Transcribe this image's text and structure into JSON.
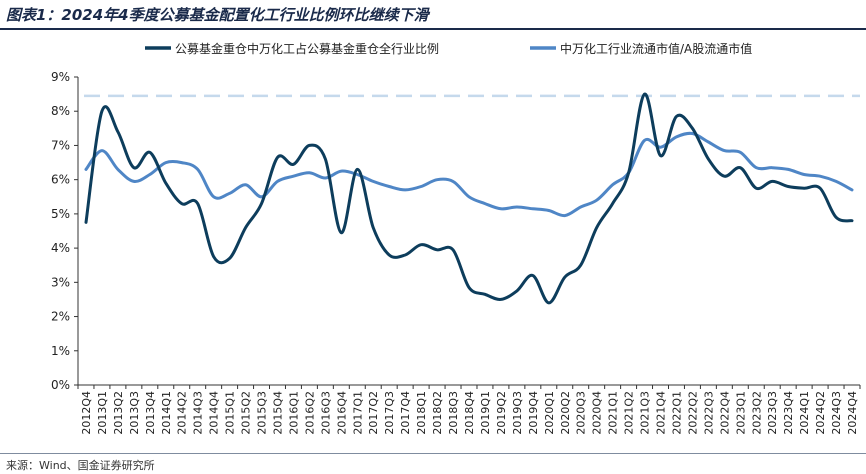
{
  "figure_title": "图表1：2024年4季度公募基金配置化工行业比例环比继续下滑",
  "source": "来源：Wind、国金证券研究所",
  "chart_data": {
    "type": "line",
    "ylim": [
      0,
      9
    ],
    "y_ticks": [
      "0%",
      "1%",
      "2%",
      "3%",
      "4%",
      "5%",
      "6%",
      "7%",
      "8%",
      "9%"
    ],
    "grid": false,
    "legend_position": "top",
    "reference_line": {
      "value": 8.45,
      "style": "dashed",
      "color": "#c5d9ec"
    },
    "x": [
      "2012Q4",
      "2013Q1",
      "2013Q2",
      "2013Q3",
      "2013Q4",
      "2014Q1",
      "2014Q2",
      "2014Q3",
      "2014Q4",
      "2015Q1",
      "2015Q2",
      "2015Q3",
      "2015Q4",
      "2016Q1",
      "2016Q2",
      "2016Q3",
      "2016Q4",
      "2017Q1",
      "2017Q2",
      "2017Q3",
      "2017Q4",
      "2018Q1",
      "2018Q2",
      "2018Q3",
      "2018Q4",
      "2019Q1",
      "2019Q2",
      "2019Q3",
      "2019Q4",
      "2020Q1",
      "2020Q2",
      "2020Q3",
      "2020Q4",
      "2021Q1",
      "2021Q2",
      "2021Q3",
      "2021Q4",
      "2022Q1",
      "2022Q2",
      "2022Q3",
      "2022Q4",
      "2023Q1",
      "2023Q2",
      "2023Q3",
      "2023Q4",
      "2024Q1",
      "2024Q2",
      "2024Q3",
      "2024Q4"
    ],
    "series": [
      {
        "name": "公募基金重仓中万化工占公募基金重仓全行业比例",
        "color": "#0d3d5c",
        "values": [
          4.75,
          8.0,
          7.4,
          6.35,
          6.8,
          5.9,
          5.3,
          5.3,
          3.75,
          3.7,
          4.6,
          5.3,
          6.65,
          6.45,
          7.0,
          6.6,
          4.45,
          6.3,
          4.6,
          3.8,
          3.8,
          4.1,
          3.95,
          3.95,
          2.85,
          2.65,
          2.5,
          2.75,
          3.2,
          2.4,
          3.15,
          3.5,
          4.6,
          5.3,
          6.2,
          8.5,
          6.7,
          7.85,
          7.5,
          6.6,
          6.1,
          6.35,
          5.75,
          5.95,
          5.8,
          5.75,
          5.75,
          4.9,
          4.8
        ]
      },
      {
        "name": "中万化工行业流通市值/A股流通市值",
        "color": "#4f86c6",
        "values": [
          6.3,
          6.85,
          6.3,
          5.95,
          6.15,
          6.5,
          6.5,
          6.3,
          5.5,
          5.6,
          5.85,
          5.5,
          5.95,
          6.1,
          6.2,
          6.05,
          6.25,
          6.15,
          5.95,
          5.8,
          5.7,
          5.8,
          6.0,
          5.95,
          5.5,
          5.3,
          5.15,
          5.2,
          5.15,
          5.1,
          4.95,
          5.2,
          5.4,
          5.85,
          6.2,
          7.15,
          6.95,
          7.25,
          7.35,
          7.1,
          6.85,
          6.8,
          6.35,
          6.35,
          6.3,
          6.15,
          6.1,
          5.95,
          5.7
        ]
      }
    ]
  }
}
